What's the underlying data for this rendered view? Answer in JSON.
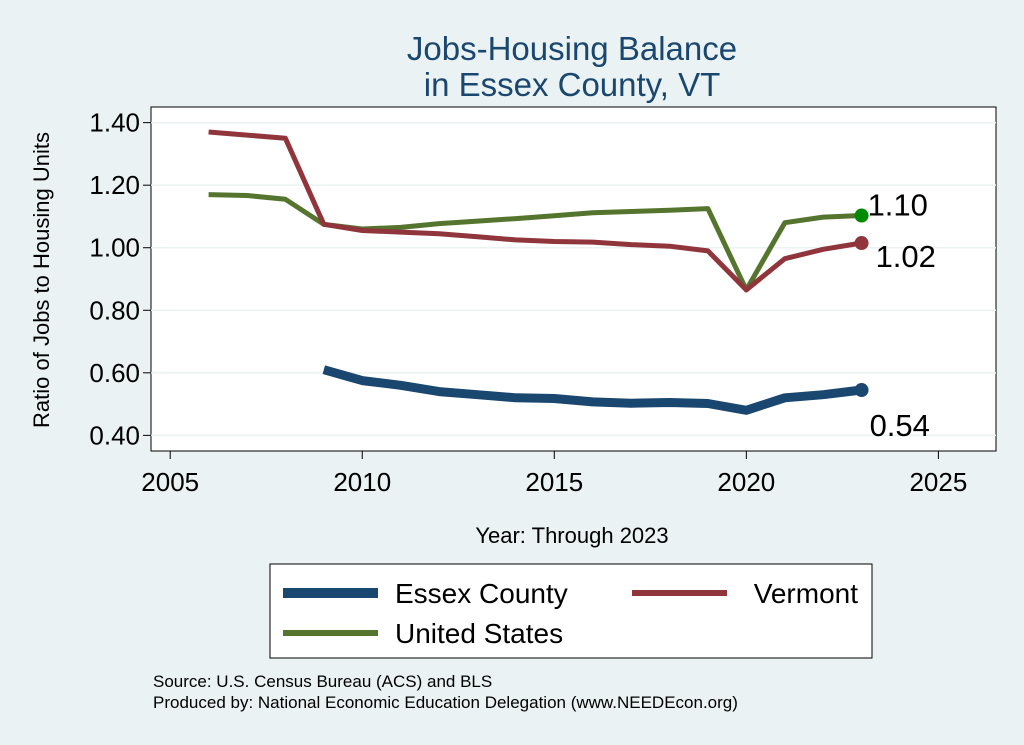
{
  "chart_data": {
    "type": "line",
    "title": [
      "Jobs-Housing Balance",
      "in Essex County, VT"
    ],
    "xlabel": "Year: Through 2023",
    "ylabel": "Ratio of Jobs to Housing Units",
    "xlim": [
      2004.5,
      2026.5
    ],
    "ylim": [
      0.35,
      1.45
    ],
    "xticks": [
      2005,
      2010,
      2015,
      2020,
      2025
    ],
    "yticks": [
      "0.40",
      "0.60",
      "0.80",
      "1.00",
      "1.20",
      "1.40"
    ],
    "grid": true,
    "series": [
      {
        "name": "Essex County",
        "color": "#1a476f",
        "width": 9,
        "x": [
          2009,
          2010,
          2011,
          2012,
          2013,
          2014,
          2015,
          2016,
          2017,
          2018,
          2019,
          2020,
          2021,
          2022,
          2023
        ],
        "values": [
          0.61,
          0.575,
          0.56,
          0.54,
          0.53,
          0.52,
          0.518,
          0.507,
          0.503,
          0.505,
          0.502,
          0.48,
          0.52,
          0.53,
          0.545
        ],
        "end_label": "0.54"
      },
      {
        "name": "Vermont",
        "color": "#90353b",
        "width": 5,
        "x": [
          2006,
          2007,
          2008,
          2009,
          2010,
          2011,
          2012,
          2013,
          2014,
          2015,
          2016,
          2017,
          2018,
          2019,
          2020,
          2021,
          2022,
          2023
        ],
        "values": [
          1.37,
          1.36,
          1.35,
          1.075,
          1.055,
          1.05,
          1.045,
          1.035,
          1.025,
          1.02,
          1.018,
          1.01,
          1.005,
          0.99,
          0.865,
          0.965,
          0.995,
          1.015
        ],
        "end_label": "1.02"
      },
      {
        "name": "United States",
        "color": "#55752f",
        "width": 5,
        "x": [
          2006,
          2007,
          2008,
          2009,
          2010,
          2011,
          2012,
          2013,
          2014,
          2015,
          2016,
          2017,
          2018,
          2019,
          2020,
          2021,
          2022,
          2023
        ],
        "values": [
          1.17,
          1.167,
          1.155,
          1.075,
          1.06,
          1.065,
          1.077,
          1.085,
          1.093,
          1.102,
          1.112,
          1.116,
          1.12,
          1.125,
          0.865,
          1.08,
          1.098,
          1.103
        ],
        "end_label": "1.10"
      }
    ],
    "legend": {
      "position": "bottom",
      "order": [
        "Essex County",
        "Vermont",
        "United States"
      ]
    },
    "notes": [
      "Source: U.S. Census Bureau (ACS) and BLS",
      "Produced by: National Economic Education Delegation (www.NEEDEcon.org)"
    ]
  }
}
